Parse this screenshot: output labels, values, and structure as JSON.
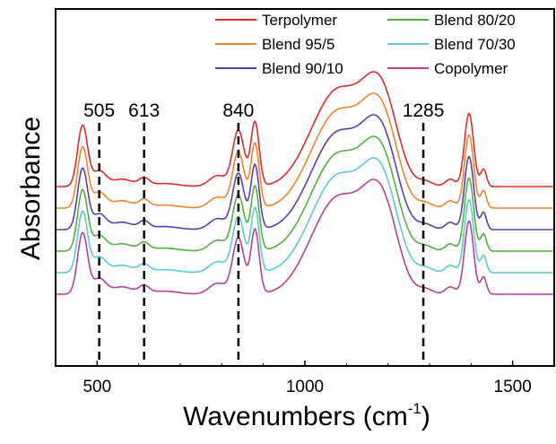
{
  "chart_data": {
    "type": "line",
    "title": "",
    "xlabel": "Wavenumbers (cm",
    "xlabel_sup": "-1",
    "xlabel_end": ")",
    "ylabel": "Absorbance",
    "xlim": [
      400,
      1600
    ],
    "xticks": [
      500,
      1000,
      1500
    ],
    "y_ticks_shown": false,
    "legend_placement": "top-right, two columns",
    "reference_lines": [
      505,
      613,
      840,
      1285
    ],
    "reference_labels": [
      "505",
      "613",
      "840",
      "1285"
    ],
    "bands": [
      {
        "center": 465,
        "width": 12,
        "amp": 1.0
      },
      {
        "center": 505,
        "width": 16,
        "amp": 0.25
      },
      {
        "center": 560,
        "width": 25,
        "amp": 0.12
      },
      {
        "center": 613,
        "width": 12,
        "amp": 0.12
      },
      {
        "center": 660,
        "width": 35,
        "amp": 0.05
      },
      {
        "center": 790,
        "width": 20,
        "amp": 0.18
      },
      {
        "center": 840,
        "width": 14,
        "amp": 0.92
      },
      {
        "center": 880,
        "width": 10,
        "amp": 1.05
      },
      {
        "center": 1000,
        "width": 40,
        "amp": 0.12
      },
      {
        "center": 1080,
        "width": 58,
        "amp": 1.55
      },
      {
        "center": 1175,
        "width": 38,
        "amp": 1.3
      },
      {
        "center": 1210,
        "width": 30,
        "amp": 0.3
      },
      {
        "center": 1290,
        "width": 18,
        "amp": 0.08
      },
      {
        "center": 1350,
        "width": 12,
        "amp": 0.12
      },
      {
        "center": 1395,
        "width": 11,
        "amp": 1.2
      },
      {
        "center": 1430,
        "width": 7,
        "amp": 0.28
      }
    ],
    "series": [
      {
        "name": "Terpolymer",
        "color": "#e02b2b",
        "offset": 0
      },
      {
        "name": "Blend 95/5",
        "color": "#f0832a",
        "offset": 1
      },
      {
        "name": "Blend 90/10",
        "color": "#5b3fa8",
        "offset": 2
      },
      {
        "name": "Blend 80/20",
        "color": "#4fb23e",
        "offset": 3
      },
      {
        "name": "Blend 70/30",
        "color": "#5cc9d3",
        "offset": 4
      },
      {
        "name": "Copolymer",
        "color": "#b83f9a",
        "offset": 5
      }
    ]
  }
}
